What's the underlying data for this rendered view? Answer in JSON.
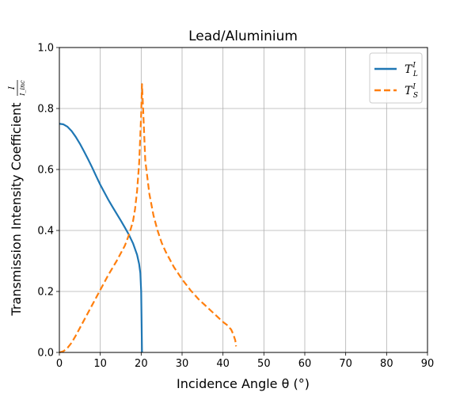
{
  "chart_data": {
    "type": "line",
    "title": "Lead/Aluminium",
    "xlabel": "Incidence Angle θ (°)",
    "ylabel": "Transmission Intensity Coefficient",
    "ylabel_fraction": {
      "numerator": "I",
      "denominator": "I_inc"
    },
    "xlim": [
      0,
      90
    ],
    "ylim": [
      0,
      1.0
    ],
    "xticks": [
      "0",
      "10",
      "20",
      "30",
      "40",
      "50",
      "60",
      "70",
      "80",
      "90"
    ],
    "yticks": [
      "0.0",
      "0.2",
      "0.4",
      "0.6",
      "0.8",
      "1.0"
    ],
    "grid": true,
    "legend_position": "top-right",
    "series": [
      {
        "name": "T_L^I",
        "color": "#1f77b4",
        "style": "solid",
        "x": [
          0,
          1,
          2,
          3,
          4,
          5,
          6,
          7,
          8,
          9,
          10,
          11,
          12,
          13,
          14,
          15,
          16,
          17,
          18,
          19,
          19.5,
          19.8,
          20,
          20.1,
          20.2
        ],
        "y": [
          0.75,
          0.748,
          0.74,
          0.726,
          0.707,
          0.685,
          0.66,
          0.634,
          0.607,
          0.578,
          0.55,
          0.525,
          0.5,
          0.477,
          0.455,
          0.433,
          0.41,
          0.386,
          0.358,
          0.32,
          0.29,
          0.26,
          0.2,
          0.1,
          0.0
        ]
      },
      {
        "name": "T_S^I",
        "color": "#ff7f0e",
        "style": "dashed",
        "x": [
          0,
          1,
          2,
          3,
          4,
          5,
          6,
          8,
          10,
          12,
          14,
          16,
          17,
          18,
          18.5,
          19,
          19.5,
          20,
          20.2,
          20.5,
          21,
          22,
          23,
          24,
          25,
          26,
          28,
          30,
          32,
          34,
          36,
          38,
          40,
          41,
          42,
          42.5,
          43,
          43.2
        ],
        "y": [
          0.0,
          0.004,
          0.015,
          0.032,
          0.055,
          0.08,
          0.105,
          0.155,
          0.205,
          0.255,
          0.3,
          0.35,
          0.385,
          0.43,
          0.47,
          0.53,
          0.62,
          0.78,
          0.88,
          0.79,
          0.63,
          0.52,
          0.45,
          0.4,
          0.36,
          0.33,
          0.28,
          0.24,
          0.205,
          0.175,
          0.15,
          0.125,
          0.1,
          0.09,
          0.075,
          0.06,
          0.04,
          0.02
        ]
      }
    ]
  }
}
